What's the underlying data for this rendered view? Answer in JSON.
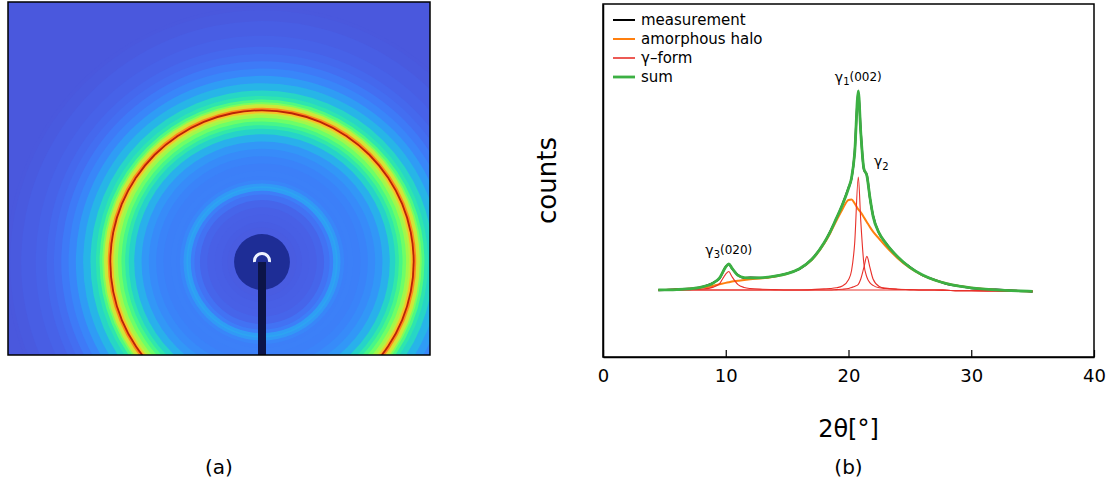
{
  "image": {
    "caption": "(a)"
  },
  "chart_data": {
    "type": "line",
    "caption": "(b)",
    "xlabel": "2θ[°]",
    "ylabel": "counts",
    "xlim": [
      0,
      40
    ],
    "xticks": [
      0,
      10,
      20,
      30,
      40
    ],
    "ylim": [
      0,
      100
    ],
    "tick_labels": "x",
    "grid": false,
    "legend": "top-left",
    "x": [
      4.5,
      5,
      6,
      7,
      8,
      9,
      9.5,
      10,
      10.25,
      10.5,
      11,
      11.5,
      12,
      13,
      14,
      15,
      16,
      17,
      18,
      18.5,
      19,
      19.5,
      20,
      20.25,
      20.5,
      20.8,
      21,
      21.25,
      21.5,
      21.75,
      22,
      22.5,
      23,
      24,
      25,
      26,
      27,
      28,
      29,
      30,
      32,
      34,
      35
    ],
    "series": [
      {
        "name": "measurement",
        "color": "#000000",
        "line_style": "medium",
        "values": [
          18.9,
          19.0,
          19.2,
          19.3,
          19.8,
          21.1,
          22.3,
          25.6,
          26.3,
          25.1,
          23.2,
          22.4,
          22.5,
          22.4,
          22.9,
          23.7,
          24.9,
          27.7,
          32.2,
          35.5,
          39.1,
          43.2,
          47.9,
          50.6,
          57.9,
          75.2,
          63.9,
          53.2,
          51.5,
          44.9,
          40.1,
          35.0,
          32.5,
          28.3,
          25.5,
          23.2,
          21.9,
          20.7,
          20.1,
          19.5,
          19.1,
          18.7,
          18.5
        ]
      },
      {
        "name": "amorphous halo",
        "color": "#ff7f0e",
        "line_style": "medium",
        "values": [
          19.0,
          19.0,
          19.1,
          19.3,
          19.6,
          20.2,
          20.6,
          21.0,
          21.2,
          21.4,
          21.6,
          21.8,
          22.0,
          22.3,
          22.8,
          23.6,
          25.0,
          27.5,
          32.0,
          35.0,
          38.5,
          41.8,
          44.5,
          44.6,
          43.5,
          41.8,
          41.0,
          39.6,
          38.2,
          36.8,
          35.5,
          33.5,
          31.5,
          28.0,
          25.2,
          23.2,
          21.8,
          20.8,
          20.1,
          19.6,
          19.0,
          18.7,
          18.6
        ]
      },
      {
        "name": "γ–form",
        "color": "#e8302a",
        "line_style": "thin",
        "values": [
          [
            19.0,
            19.0,
            19.0,
            19.0,
            19.0,
            19.0,
            19.0,
            19.0,
            19.0,
            19.0,
            19.0,
            19.0,
            19.0,
            19.0,
            19.0,
            19.0,
            19.0,
            19.1,
            19.3,
            19.4,
            19.6,
            20.1,
            21.9,
            24.5,
            32.1,
            51.0,
            38.5,
            26.5,
            22.6,
            21.0,
            20.3,
            19.6,
            19.4,
            19.2,
            19.1,
            19.0,
            19.0,
            18.9,
            18.8,
            18.8,
            18.7,
            18.6,
            18.6
          ],
          [
            19.0,
            19.0,
            19.0,
            19.0,
            19.0,
            19.0,
            19.0,
            19.0,
            19.0,
            19.0,
            19.0,
            19.0,
            19.0,
            19.0,
            19.0,
            19.0,
            19.0,
            19.0,
            19.0,
            19.0,
            19.1,
            19.2,
            19.4,
            19.7,
            20.0,
            20.6,
            22.1,
            25.3,
            28.5,
            25.3,
            22.1,
            20.0,
            19.5,
            19.2,
            19.1,
            19.0,
            19.0,
            18.9,
            18.8,
            18.8,
            18.7,
            18.6,
            18.6
          ],
          [
            19.0,
            19.0,
            19.0,
            19.1,
            19.2,
            19.8,
            20.8,
            23.5,
            24.2,
            22.8,
            20.5,
            19.7,
            19.4,
            19.2,
            19.1,
            19.0,
            19.0,
            19.0,
            19.0,
            19.0,
            19.0,
            19.0,
            19.0,
            19.0,
            19.0,
            19.0,
            19.0,
            19.0,
            19.0,
            19.0,
            19.0,
            19.0,
            19.0,
            19.0,
            19.0,
            19.0,
            19.0,
            18.9,
            18.8,
            18.8,
            18.7,
            18.6,
            18.6
          ]
        ]
      },
      {
        "name": "sum",
        "color": "#3cb043",
        "line_style": "thick",
        "values": [
          19.0,
          19.0,
          19.1,
          19.3,
          19.8,
          21.0,
          22.4,
          25.5,
          26.4,
          25.2,
          23.1,
          22.5,
          22.4,
          22.5,
          22.9,
          23.6,
          25.0,
          27.6,
          32.3,
          35.4,
          39.2,
          43.1,
          47.8,
          50.8,
          57.6,
          75.4,
          63.6,
          53.4,
          51.3,
          45.1,
          39.9,
          35.1,
          32.4,
          28.4,
          25.4,
          23.3,
          21.8,
          20.8,
          20.1,
          19.6,
          19.0,
          18.7,
          18.6
        ]
      }
    ],
    "annotations": [
      "γ1(002)",
      "γ2",
      "γ3(020)"
    ]
  }
}
